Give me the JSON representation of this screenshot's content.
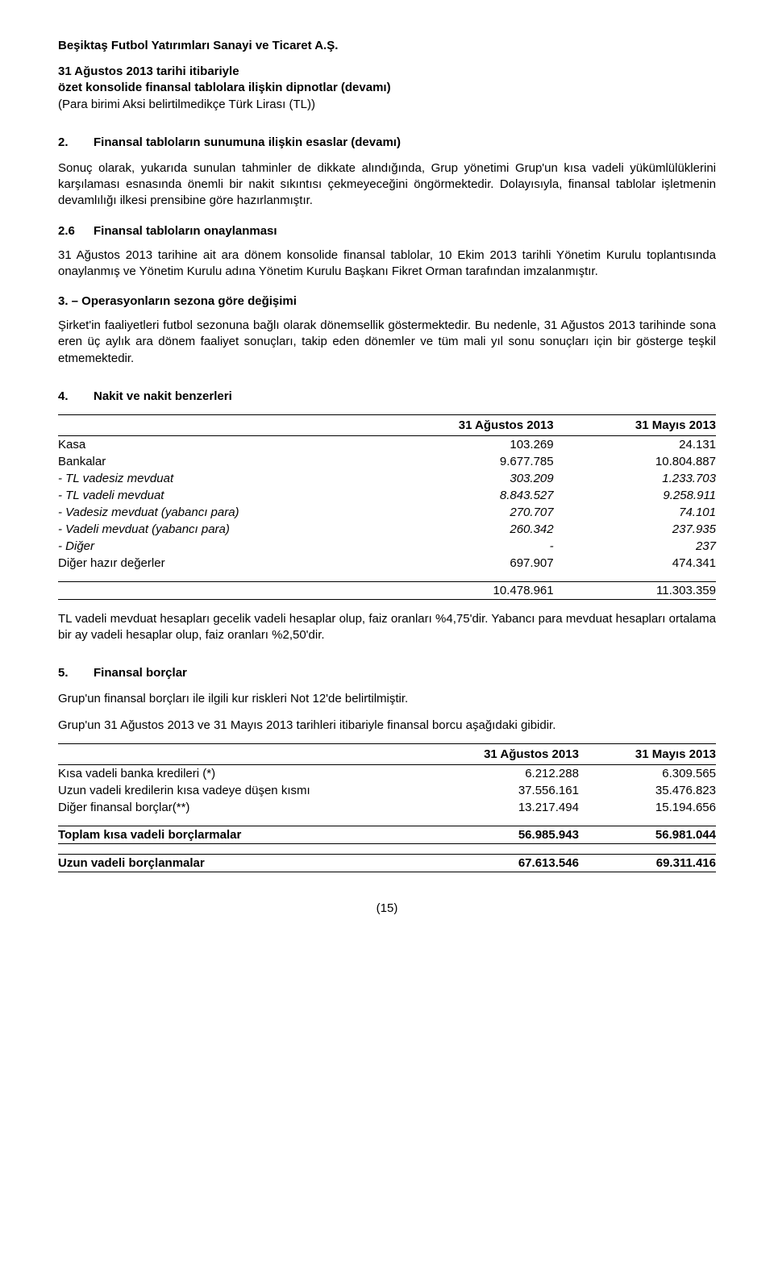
{
  "header": {
    "company": "Beşiktaş Futbol Yatırımları Sanayi ve Ticaret A.Ş.",
    "line1": "31 Ağustos 2013 tarihi itibariyle",
    "line2": "özet konsolide finansal tablolara ilişkin dipnotlar (devamı)",
    "line3": "(Para birimi Aksi belirtilmedikçe Türk Lirası (TL))"
  },
  "s2": {
    "num": "2.",
    "title": "Finansal tabloların sunumuna ilişkin esaslar (devamı)",
    "p1": "Sonuç olarak, yukarıda sunulan tahminler de dikkate alındığında, Grup yönetimi Grup'un kısa vadeli yükümlülüklerini karşılaması esnasında önemli bir nakit sıkıntısı çekmeyeceğini öngörmektedir. Dolayısıyla, finansal tablolar işletmenin devamlılığı ilkesi prensibine göre hazırlanmıştır.",
    "sub26num": "2.6",
    "sub26title": "Finansal tabloların onaylanması",
    "p26": "31 Ağustos 2013 tarihine ait ara dönem konsolide finansal tablolar, 10 Ekim 2013 tarihli Yönetim Kurulu toplantısında onaylanmış ve Yönetim Kurulu adına Yönetim Kurulu Başkanı Fikret Orman tarafından imzalanmıştır."
  },
  "s3": {
    "title": "3. – Operasyonların sezona göre değişimi",
    "p1": "Şirket'in faaliyetleri futbol sezonuna bağlı olarak dönemsellik göstermektedir. Bu nedenle, 31 Ağustos 2013 tarihinde sona eren üç aylık ara dönem faaliyet sonuçları, takip eden dönemler ve tüm mali yıl sonu sonuçları için bir gösterge teşkil etmemektedir."
  },
  "s4": {
    "num": "4.",
    "title": "Nakit ve nakit benzerleri",
    "col1": "31 Ağustos 2013",
    "col2": "31 Mayıs 2013",
    "rows": [
      {
        "label": "Kasa",
        "v1": "103.269",
        "v2": "24.131",
        "italic": false
      },
      {
        "label": "Bankalar",
        "v1": "9.677.785",
        "v2": "10.804.887",
        "italic": false
      },
      {
        "label": "- TL vadesiz mevduat",
        "v1": "303.209",
        "v2": "1.233.703",
        "italic": true
      },
      {
        "label": "- TL vadeli mevduat",
        "v1": "8.843.527",
        "v2": "9.258.911",
        "italic": true
      },
      {
        "label": "- Vadesiz mevduat (yabancı para)",
        "v1": "270.707",
        "v2": "74.101",
        "italic": true
      },
      {
        "label": "- Vadeli mevduat (yabancı para)",
        "v1": "260.342",
        "v2": "237.935",
        "italic": true
      },
      {
        "label": "- Diğer",
        "v1": "-",
        "v2": "237",
        "italic": true
      },
      {
        "label": "Diğer hazır değerler",
        "v1": "697.907",
        "v2": "474.341",
        "italic": false
      }
    ],
    "total": {
      "v1": "10.478.961",
      "v2": "11.303.359"
    },
    "note": "TL vadeli mevduat hesapları gecelik vadeli hesaplar olup, faiz oranları %4,75'dir. Yabancı para mevduat hesapları ortalama bir ay vadeli hesaplar olup, faiz oranları %2,50'dir."
  },
  "s5": {
    "num": "5.",
    "title": "Finansal borçlar",
    "p1": "Grup'un finansal borçları ile ilgili kur riskleri Not 12'de belirtilmiştir.",
    "p2": "Grup'un 31 Ağustos 2013 ve 31 Mayıs 2013 tarihleri itibariyle finansal borcu aşağıdaki gibidir.",
    "col1": "31 Ağustos 2013",
    "col2": "31 Mayıs 2013",
    "rows": [
      {
        "label": "Kısa vadeli banka kredileri (*)",
        "v1": "6.212.288",
        "v2": "6.309.565"
      },
      {
        "label": "Uzun vadeli kredilerin kısa vadeye düşen kısmı",
        "v1": "37.556.161",
        "v2": "35.476.823"
      },
      {
        "label": "Diğer finansal borçlar(**)",
        "v1": "13.217.494",
        "v2": "15.194.656"
      }
    ],
    "sub1": {
      "label": "Toplam kısa vadeli borçlarmalar",
      "v1": "56.985.943",
      "v2": "56.981.044"
    },
    "sub2": {
      "label": "Uzun vadeli borçlanmalar",
      "v1": "67.613.546",
      "v2": "69.311.416"
    }
  },
  "pageNum": "(15)"
}
